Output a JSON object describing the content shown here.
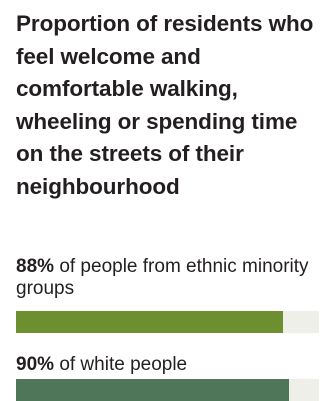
{
  "title": "Proportion of residents who feel welcome and comfortable walking, wheeling or spending time on the streets of their neighbourhood",
  "chart_data": {
    "type": "bar",
    "orientation": "horizontal",
    "title": "Proportion of residents who feel welcome and comfortable walking, wheeling or spending time on the streets of their neighbourhood",
    "categories": [
      "of people from ethnic minority groups",
      "of white people"
    ],
    "values": [
      88,
      90
    ],
    "value_labels": [
      "88%",
      "90%"
    ],
    "xlim": [
      0,
      100
    ],
    "unit": "%",
    "colors": [
      "#6c9030",
      "#4f7659"
    ],
    "track_color": "#efefe9",
    "grid": false,
    "legend": "none"
  }
}
